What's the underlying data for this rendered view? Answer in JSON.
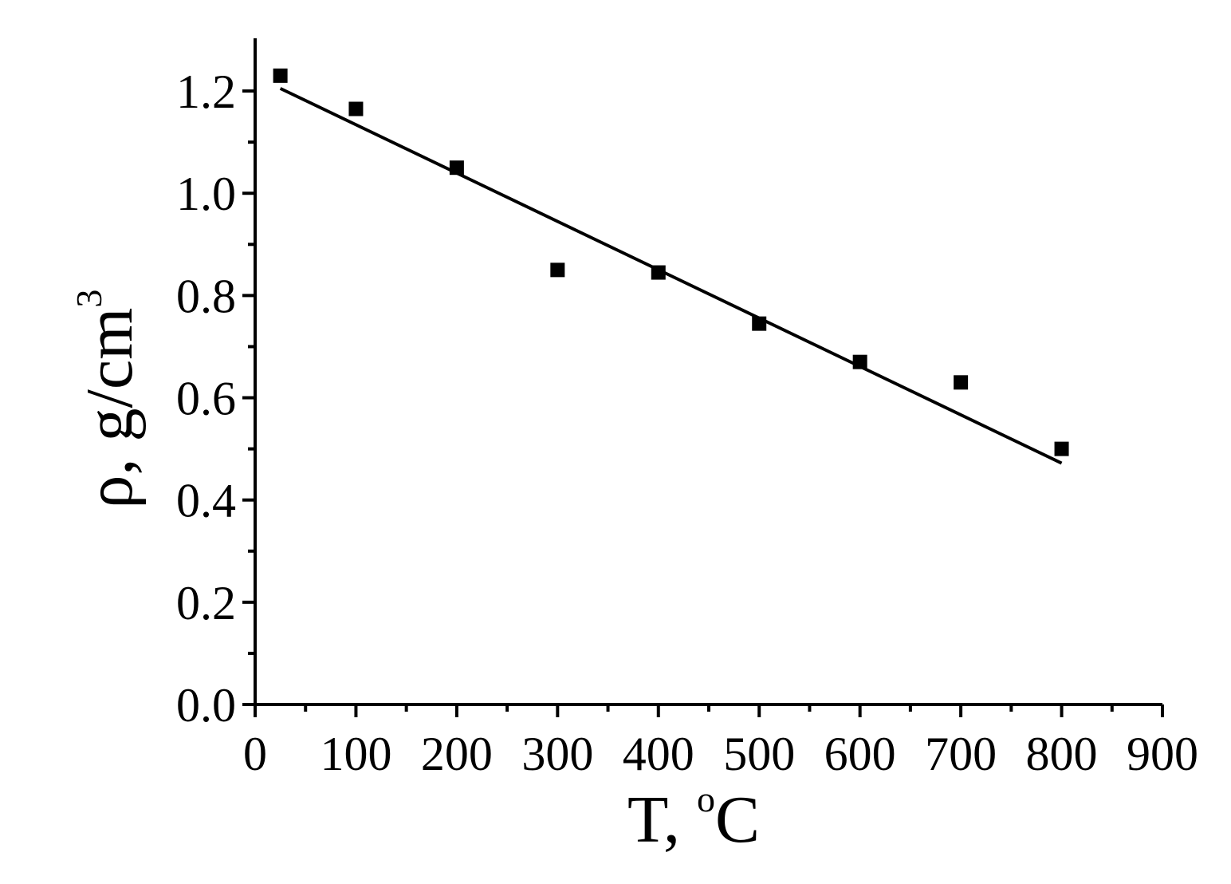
{
  "chart_data": {
    "type": "scatter",
    "xlabel": "T, ",
    "xlabel_sup": "o",
    "xlabel_end": "C",
    "ylabel": "ρ, g/cm",
    "ylabel_sup": "3",
    "xlim": [
      0,
      900
    ],
    "ylim": [
      0.0,
      1.3
    ],
    "x_ticks": [
      0,
      100,
      200,
      300,
      400,
      500,
      600,
      700,
      800,
      900
    ],
    "x_tick_labels": [
      "0",
      "100",
      "200",
      "300",
      "400",
      "500",
      "600",
      "700",
      "800",
      "900"
    ],
    "x_minor_ticks": [
      50,
      150,
      250,
      350,
      450,
      550,
      650,
      750,
      850
    ],
    "y_ticks": [
      0.0,
      0.2,
      0.4,
      0.6,
      0.8,
      1.0,
      1.2
    ],
    "y_tick_labels": [
      "0.0",
      "0.2",
      "0.4",
      "0.6",
      "0.8",
      "1.0",
      "1.2"
    ],
    "y_minor_ticks": [
      0.1,
      0.3,
      0.5,
      0.7,
      0.9,
      1.1
    ],
    "grid": false,
    "series": [
      {
        "x": [
          25,
          100,
          200,
          300,
          400,
          500,
          600,
          700,
          800
        ],
        "y": [
          1.23,
          1.165,
          1.05,
          0.85,
          0.845,
          0.745,
          0.67,
          0.63,
          0.5
        ]
      }
    ],
    "fit_line": {
      "x": [
        25,
        800
      ],
      "y": [
        1.205,
        0.472
      ]
    }
  }
}
